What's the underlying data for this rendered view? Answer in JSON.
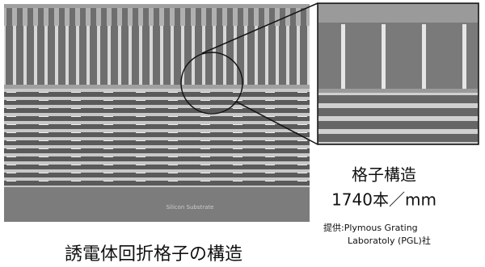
{
  "figure": {
    "substrate_label": "Silicon Substrate",
    "inset_title": "格子構造",
    "inset_density": "1740本／mm",
    "credit_line1": "提供:Plymous Grating",
    "credit_line2": "Laboratoly (PGL)社",
    "caption": "誘電体回折格子の構造"
  }
}
